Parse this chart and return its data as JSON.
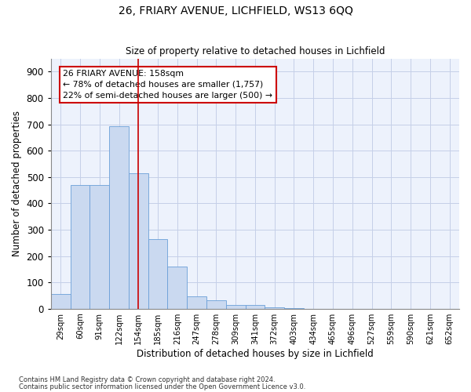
{
  "title1": "26, FRIARY AVENUE, LICHFIELD, WS13 6QQ",
  "title2": "Size of property relative to detached houses in Lichfield",
  "xlabel": "Distribution of detached houses by size in Lichfield",
  "ylabel": "Number of detached properties",
  "categories": [
    "29sqm",
    "60sqm",
    "91sqm",
    "122sqm",
    "154sqm",
    "185sqm",
    "216sqm",
    "247sqm",
    "278sqm",
    "309sqm",
    "341sqm",
    "372sqm",
    "403sqm",
    "434sqm",
    "465sqm",
    "496sqm",
    "527sqm",
    "559sqm",
    "590sqm",
    "621sqm",
    "652sqm"
  ],
  "values": [
    57,
    468,
    468,
    693,
    513,
    265,
    160,
    47,
    32,
    15,
    13,
    5,
    2,
    0,
    0,
    0,
    0,
    0,
    0,
    0,
    0
  ],
  "bar_color": "#cad9f0",
  "bar_edge_color": "#6a9fd8",
  "annotation_line1": "26 FRIARY AVENUE: 158sqm",
  "annotation_line2": "← 78% of detached houses are smaller (1,757)",
  "annotation_line3": "22% of semi-detached houses are larger (500) →",
  "annotation_box_color": "#ffffff",
  "annotation_box_edge": "#cc0000",
  "vline_color": "#cc0000",
  "vline_x": 4.0,
  "ylim": [
    0,
    950
  ],
  "yticks": [
    0,
    100,
    200,
    300,
    400,
    500,
    600,
    700,
    800,
    900
  ],
  "footer1": "Contains HM Land Registry data © Crown copyright and database right 2024.",
  "footer2": "Contains public sector information licensed under the Open Government Licence v3.0.",
  "bg_color": "#edf2fc",
  "grid_color": "#c5cfe8"
}
